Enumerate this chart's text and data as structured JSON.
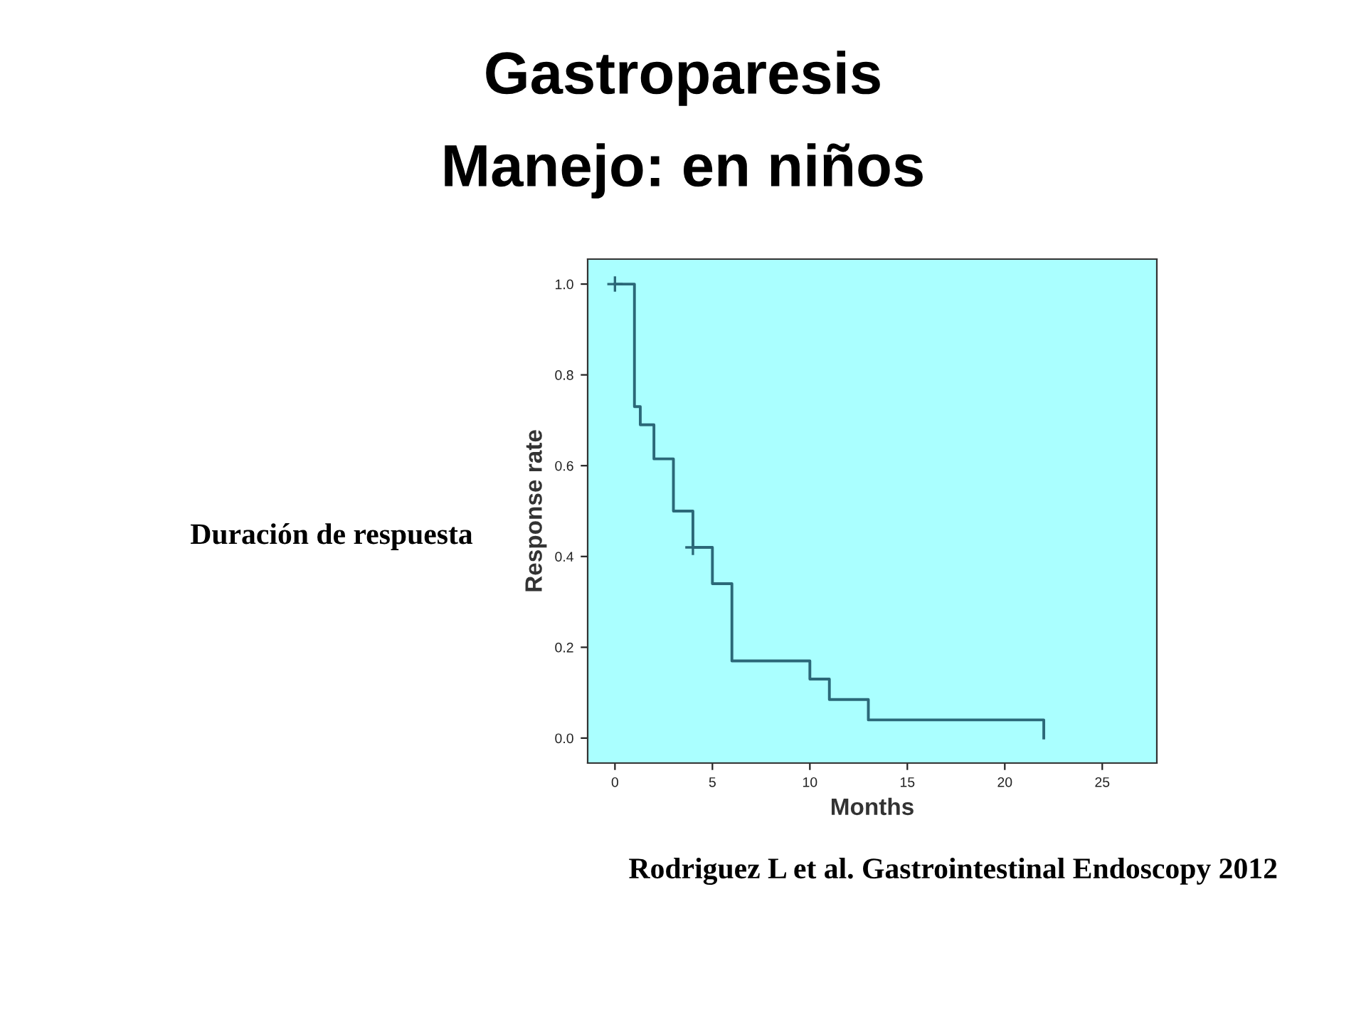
{
  "chart_data": {
    "type": "step",
    "title": "Gastroparesis",
    "subtitle": "Manejo: en niños",
    "xlabel": "Months",
    "ylabel": "Response rate",
    "x": [
      0,
      1,
      1.3,
      2,
      3,
      4,
      5,
      6,
      10,
      11,
      13,
      22
    ],
    "series": [
      {
        "color": "#2b6878",
        "values": [
          1.0,
          0.73,
          0.69,
          0.615,
          0.5,
          0.42,
          0.34,
          0.17,
          0.13,
          0.085,
          0.04,
          0.0
        ]
      },
      {
        "type": "scatter",
        "color": "#2b6878",
        "marker": "cross",
        "x": [
          0,
          4
        ],
        "values": [
          1.0,
          0.42
        ]
      }
    ],
    "xlim": [
      -1.4,
      27.8
    ],
    "ylim": [
      -0.055,
      1.055
    ],
    "xticks": [
      0,
      5,
      10,
      15,
      20,
      25
    ],
    "yticks": [
      {
        "value": 0,
        "label": "0.0"
      },
      {
        "value": 0.2,
        "label": "0.2"
      },
      {
        "value": 0.4,
        "label": "0.4"
      },
      {
        "value": 0.6,
        "label": "0.6"
      },
      {
        "value": 0.8,
        "label": "0.8"
      },
      {
        "value": 1,
        "label": "1.0"
      }
    ],
    "grid": false,
    "legend": false,
    "annotations": [
      "Duración de respuesta",
      "Rodriguez L et al. Gastrointestinal Endoscopy 2012"
    ]
  }
}
